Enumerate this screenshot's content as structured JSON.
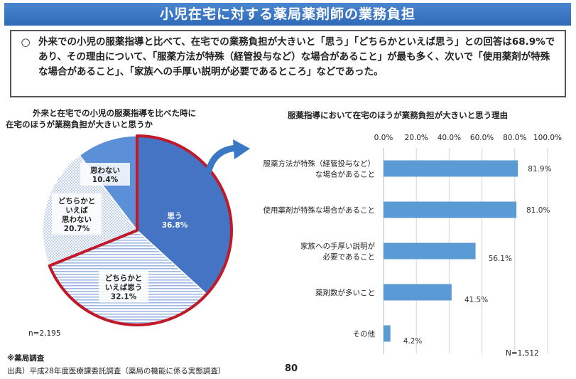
{
  "title": "小児在宅に対する薬局薬剤師の業務負担",
  "summary": {
    "mark": "○",
    "text": "外来での小児の服薬指導と比べて、在宅での業務負担が大きいと「思う」「どちらかといえば思う」との回答は68.9%であり、その理由について、「服薬方法が特殊（経管投与など）な場合があること」が最も多く、次いで「使用薬剤が特殊な場合があること」、「家族への手厚い説明が必要であるところ」などであった。"
  },
  "chart_data": [
    {
      "type": "pie",
      "title_lines": [
        "外来と在宅での小児の服薬指導を比べた時に",
        "在宅のほうが業務負担が大きいと思うか"
      ],
      "slices": [
        {
          "label_lines": [
            "思う"
          ],
          "value": 36.8,
          "display": "36.8%",
          "fill": "#4674c4",
          "label_color": "#ffffff"
        },
        {
          "label_lines": [
            "どちらかと",
            "いえば思う"
          ],
          "value": 32.1,
          "display": "32.1%",
          "fill": "#dfe7f4",
          "label_color": "#222222"
        },
        {
          "label_lines": [
            "どちらかと",
            "いえば",
            "思わない"
          ],
          "value": 20.7,
          "display": "20.7%",
          "fill": "#e8eef7",
          "label_color": "#222222"
        },
        {
          "label_lines": [
            "思わない"
          ],
          "value": 10.4,
          "display": "10.4%",
          "fill": "#5b8fd8",
          "label_color": "#222222"
        }
      ],
      "highlight_color": "#c0192a",
      "n_label": "n=2,195"
    },
    {
      "type": "bar",
      "orientation": "horizontal",
      "title": "服薬指導において在宅のほうが業務負担が大きいと思う理由",
      "x_ticks": [
        "0.0%",
        "20.0%",
        "40.0%",
        "60.0%",
        "80.0%",
        "100.0%"
      ],
      "xlim": [
        0,
        100
      ],
      "bar_color": "#5b9bd5",
      "categories": [
        {
          "label_lines": [
            "服薬方法が特殊（経管投与など）",
            "な場合があること"
          ],
          "value": 81.9,
          "display": "81.9%"
        },
        {
          "label_lines": [
            "使用薬剤が特殊な場合があること"
          ],
          "value": 81.0,
          "display": "81.0%"
        },
        {
          "label_lines": [
            "家族への手厚い説明が",
            "必要であること"
          ],
          "value": 56.1,
          "display": "56.1%"
        },
        {
          "label_lines": [
            "薬剤数が多いこと"
          ],
          "value": 41.5,
          "display": "41.5%"
        },
        {
          "label_lines": [
            "その他"
          ],
          "value": 4.2,
          "display": "4.2%"
        }
      ],
      "n_label": "N=1,512"
    }
  ],
  "footer": {
    "survey_note": "※薬局調査",
    "source": "出典）平成28年度医療課委託調査（薬局の機能に係る実態調査）",
    "page_number": "80"
  },
  "colors": {
    "title_bar": "#3a78c6",
    "arrow": "#3a78c6"
  }
}
